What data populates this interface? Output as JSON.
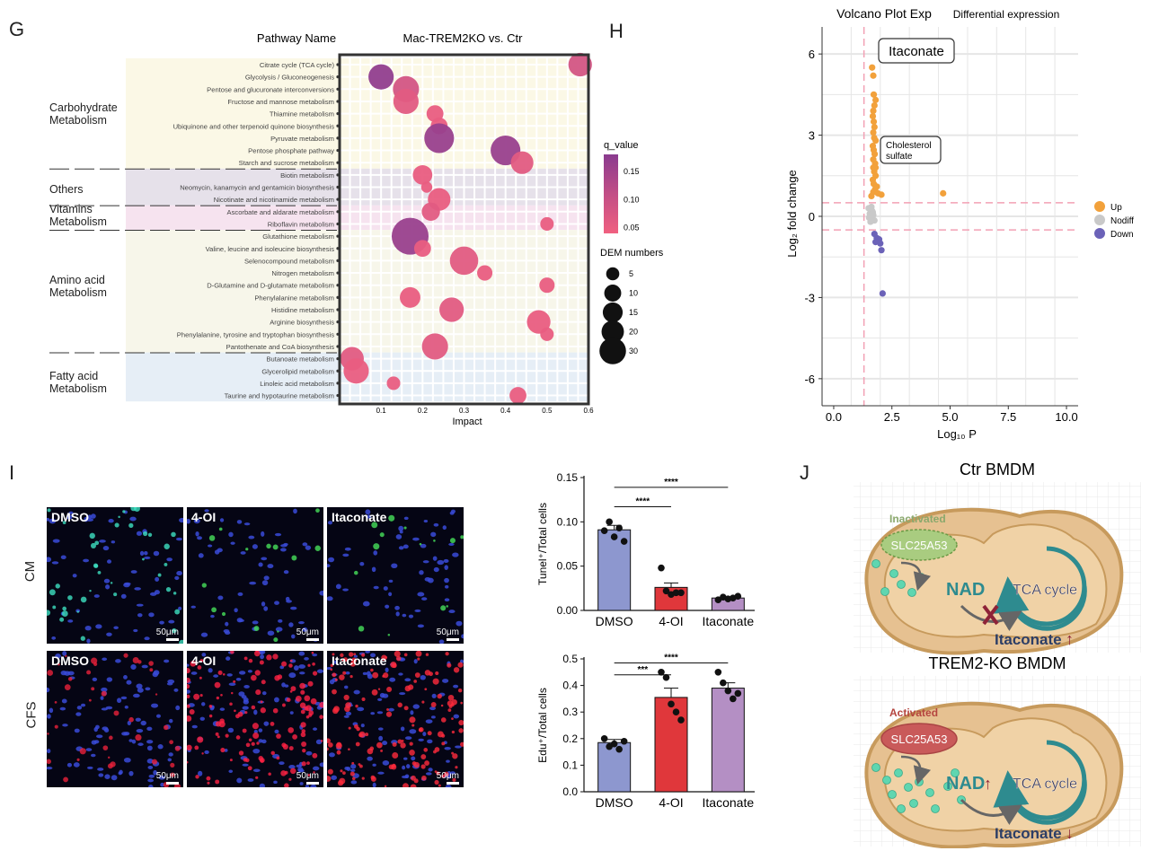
{
  "panels": {
    "G": "G",
    "H": "H",
    "I": "I",
    "J": "J"
  },
  "colors": {
    "q_low": "#f06080",
    "q_high": "#8a3b8f",
    "up": "#f2a13b",
    "nodiff": "#c9c9c9",
    "down": "#6b62b8",
    "dmso_bar": "#8d97cf",
    "oi_bar": "#e0373b",
    "ita_bar": "#b48fc4",
    "mito_fill": "#e6c191",
    "mito_stroke": "#c79a5c",
    "teal": "#2e8b8f",
    "arrow_red": "#8e2338"
  },
  "g_title": "Mac-TREM2KO vs. Ctr",
  "g_pathway_header": "Pathway Name",
  "g_xlabel": "Impact",
  "g_xticks": [
    "0.1",
    "0.2",
    "0.3",
    "0.4",
    "0.5",
    "0.6"
  ],
  "g_groups": [
    "Carbohydrate\nMetabolism",
    "Others",
    "Vitamins\nMetabolism",
    "Amino acid\nMetabolism",
    "Fatty acid\nMetabolism"
  ],
  "g_legend_q_title": "q_value",
  "g_legend_q_ticks": [
    "0.15",
    "0.10",
    "0.05"
  ],
  "g_legend_size_title": "DEM numbers",
  "g_legend_size_items": [
    "5",
    "10",
    "15",
    "20",
    "30"
  ],
  "h_title": "Volcano Plot Exp",
  "h_subtitle": "Differential expression",
  "h_ylabel": "Log₂ fold change",
  "h_xlabel": "Log₁₀ P",
  "h_yticks": [
    "6",
    "3",
    "0",
    "-3",
    "-6"
  ],
  "h_xticks": [
    "0.0",
    "2.5",
    "5.0",
    "7.5",
    "10.0"
  ],
  "h_annot_itaconate": "Itaconate",
  "h_annot_chol": "Cholesterol\nsulfate",
  "h_legend": [
    "Up",
    "Nodiff",
    "Down"
  ],
  "i_treatments": [
    "DMSO",
    "4-OI",
    "Itaconate"
  ],
  "i_rows": [
    "CM",
    "CFS"
  ],
  "i_scale": "50μm",
  "i_top_ylabel": "Tunel⁺/Total cells",
  "i_bot_ylabel": "Edu⁺/Total cells",
  "i_top_yticks": [
    "0.15",
    "0.10",
    "0.05",
    "0.00"
  ],
  "i_bot_yticks": [
    "0.5",
    "0.4",
    "0.3",
    "0.2",
    "0.1",
    "0.0"
  ],
  "i_sig_top": [
    "****",
    "****"
  ],
  "i_sig_bot": [
    "***",
    "****"
  ],
  "j_ctr_title": "Ctr BMDM",
  "j_ko_title": "TREM2-KO BMDM",
  "j_inactivated": "Inactivated",
  "j_activated": "Activated",
  "j_slc": "SLC25A53",
  "j_nad": "NAD",
  "j_tca": "TCA cycle",
  "j_ita": "Itaconate",
  "chart_data": [
    {
      "type": "scatter",
      "title": "Mac-TREM2KO vs. Ctr",
      "xlabel": "Impact",
      "ylabel": "Pathway Name",
      "xlim": [
        0,
        0.6
      ],
      "points": [
        {
          "pathway": "Citrate cycle (TCA cycle)",
          "impact": 0.58,
          "dem": 10,
          "q": 0.08
        },
        {
          "pathway": "Glycolysis / Gluconeogenesis",
          "impact": 0.1,
          "dem": 12,
          "q": 0.17
        },
        {
          "pathway": "Pentose and glucuronate interconversions",
          "impact": 0.16,
          "dem": 13,
          "q": 0.08
        },
        {
          "pathway": "Fructose and mannose metabolism",
          "impact": 0.16,
          "dem": 12,
          "q": 0.06
        },
        {
          "pathway": "Thiamine metabolism",
          "impact": 0.23,
          "dem": 4,
          "q": 0.05
        },
        {
          "pathway": "Ubiquinone and other terpenoid quinone biosynthesis",
          "impact": 0.24,
          "dem": 4,
          "q": 0.05
        },
        {
          "pathway": "Pyruvate metabolism",
          "impact": 0.24,
          "dem": 18,
          "q": 0.16
        },
        {
          "pathway": "Pentose phosphate pathway",
          "impact": 0.4,
          "dem": 18,
          "q": 0.16
        },
        {
          "pathway": "Starch and sucrose metabolism",
          "impact": 0.44,
          "dem": 9,
          "q": 0.06
        },
        {
          "pathway": "Biotin metabolism",
          "impact": 0.2,
          "dem": 6,
          "q": 0.05
        },
        {
          "pathway": "Neomycin, kanamycin and gentamicin biosynthesis",
          "impact": 0.21,
          "dem": 1,
          "q": 0.05
        },
        {
          "pathway": "Nicotinate and nicotinamide metabolism",
          "impact": 0.24,
          "dem": 9,
          "q": 0.05
        },
        {
          "pathway": "Ascorbate and aldarate metabolism",
          "impact": 0.22,
          "dem": 5,
          "q": 0.06
        },
        {
          "pathway": "Riboflavin metabolism",
          "impact": 0.5,
          "dem": 2,
          "q": 0.05
        },
        {
          "pathway": "Glutathione metabolism",
          "impact": 0.17,
          "dem": 30,
          "q": 0.16
        },
        {
          "pathway": "Valine, leucine and isoleucine biosynthesis",
          "impact": 0.2,
          "dem": 4,
          "q": 0.05
        },
        {
          "pathway": "Selenocompound metabolism",
          "impact": 0.3,
          "dem": 16,
          "q": 0.06
        },
        {
          "pathway": "Nitrogen metabolism",
          "impact": 0.35,
          "dem": 3,
          "q": 0.05
        },
        {
          "pathway": "D-Glutamine and D-glutamate metabolism",
          "impact": 0.5,
          "dem": 3,
          "q": 0.05
        },
        {
          "pathway": "Phenylalanine metabolism",
          "impact": 0.17,
          "dem": 7,
          "q": 0.05
        },
        {
          "pathway": "Histidine metabolism",
          "impact": 0.27,
          "dem": 11,
          "q": 0.06
        },
        {
          "pathway": "Arginine biosynthesis",
          "impact": 0.48,
          "dem": 10,
          "q": 0.05
        },
        {
          "pathway": "Phenylalanine, tyrosine and tryptophan biosynthesis",
          "impact": 0.5,
          "dem": 2,
          "q": 0.05
        },
        {
          "pathway": "Pantothenate and CoA biosynthesis",
          "impact": 0.23,
          "dem": 13,
          "q": 0.06
        },
        {
          "pathway": "Butanoate metabolism",
          "impact": 0.03,
          "dem": 10,
          "q": 0.06
        },
        {
          "pathway": "Glycerolipid metabolism",
          "impact": 0.04,
          "dem": 12,
          "q": 0.05
        },
        {
          "pathway": "Linoleic acid metabolism",
          "impact": 0.13,
          "dem": 2,
          "q": 0.05
        },
        {
          "pathway": "Taurine and hypotaurine metabolism",
          "impact": 0.43,
          "dem": 4,
          "q": 0.05
        }
      ]
    },
    {
      "type": "scatter",
      "title": "Volcano Plot Exp",
      "xlabel": "Log10 P",
      "ylabel": "Log2 fold change",
      "xlim": [
        -0.5,
        10.5
      ],
      "ylim": [
        -7,
        7
      ],
      "series": [
        {
          "name": "Up",
          "points": [
            [
              1.65,
              5.5
            ],
            [
              1.7,
              5.2
            ],
            [
              1.72,
              4.5
            ],
            [
              1.8,
              4.3
            ],
            [
              1.75,
              4.1
            ],
            [
              1.7,
              3.9
            ],
            [
              1.68,
              3.7
            ],
            [
              1.72,
              3.5
            ],
            [
              1.75,
              3.3
            ],
            [
              1.7,
              3.1
            ],
            [
              1.74,
              2.9
            ],
            [
              1.8,
              2.8
            ],
            [
              1.68,
              2.6
            ],
            [
              1.72,
              2.45
            ],
            [
              1.76,
              2.3
            ],
            [
              1.7,
              2.1
            ],
            [
              1.78,
              1.95
            ],
            [
              1.7,
              1.8
            ],
            [
              1.74,
              1.65
            ],
            [
              1.8,
              1.5
            ],
            [
              1.68,
              1.35
            ],
            [
              1.72,
              1.2
            ],
            [
              1.85,
              1.1
            ],
            [
              1.78,
              1.0
            ],
            [
              1.7,
              0.9
            ],
            [
              1.9,
              0.85
            ],
            [
              2.05,
              0.8
            ],
            [
              1.62,
              0.75
            ],
            [
              4.7,
              0.85
            ],
            [
              1.8,
              1.8
            ]
          ]
        },
        {
          "name": "Nodiff",
          "points": [
            [
              1.5,
              0.3
            ],
            [
              1.55,
              0.1
            ],
            [
              1.6,
              -0.1
            ],
            [
              1.65,
              0.2
            ],
            [
              1.58,
              -0.2
            ],
            [
              1.7,
              0.05
            ],
            [
              1.52,
              -0.05
            ],
            [
              1.62,
              0.35
            ],
            [
              1.75,
              -0.15
            ],
            [
              1.68,
              0.15
            ]
          ]
        },
        {
          "name": "Down",
          "points": [
            [
              1.75,
              -0.65
            ],
            [
              1.85,
              -0.8
            ],
            [
              1.95,
              -0.85
            ],
            [
              1.8,
              -0.95
            ],
            [
              2.0,
              -1.0
            ],
            [
              2.05,
              -1.25
            ],
            [
              2.1,
              -2.85
            ]
          ]
        }
      ],
      "thresholds": {
        "x": 1.3,
        "y": [
          0.5,
          -0.5
        ]
      }
    },
    {
      "type": "bar",
      "title": "",
      "ylabel": "Tunel+/Total cells",
      "categories": [
        "DMSO",
        "4-OI",
        "Itaconate"
      ],
      "values": [
        0.091,
        0.026,
        0.014
      ],
      "errors": [
        0.005,
        0.005,
        0.0015
      ],
      "ylim": [
        0,
        0.15
      ],
      "points": [
        [
          0.09,
          0.1,
          0.083,
          0.093,
          0.078
        ],
        [
          0.048,
          0.022,
          0.018,
          0.02,
          0.02
        ],
        [
          0.012,
          0.015,
          0.013,
          0.014,
          0.016
        ]
      ]
    },
    {
      "type": "bar",
      "title": "",
      "ylabel": "Edu+/Total cells",
      "categories": [
        "DMSO",
        "4-OI",
        "Itaconate"
      ],
      "values": [
        0.185,
        0.355,
        0.39
      ],
      "errors": [
        0.012,
        0.035,
        0.02
      ],
      "ylim": [
        0,
        0.5
      ],
      "points": [
        [
          0.2,
          0.17,
          0.18,
          0.16,
          0.19
        ],
        [
          0.45,
          0.43,
          0.33,
          0.3,
          0.27
        ],
        [
          0.45,
          0.41,
          0.38,
          0.35,
          0.37
        ]
      ]
    }
  ]
}
